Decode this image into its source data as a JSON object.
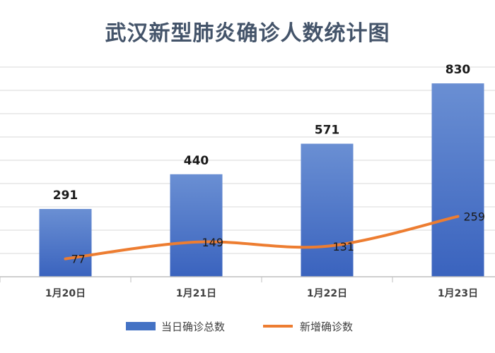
{
  "chart_data": {
    "type": "bar",
    "title": "武汉新型肺炎确诊人数统计图",
    "categories": [
      "1月20日",
      "1月21日",
      "1月22日",
      "1月23日"
    ],
    "series": [
      {
        "name": "当日确诊总数",
        "type": "bar",
        "values": [
          291,
          440,
          571,
          830
        ],
        "color": "#4472C4"
      },
      {
        "name": "新增确诊数",
        "type": "line",
        "values": [
          77,
          149,
          131,
          259
        ],
        "color": "#ED7D31"
      }
    ],
    "ylim": [
      0,
      900
    ],
    "grid": true,
    "legend": "bottom"
  }
}
